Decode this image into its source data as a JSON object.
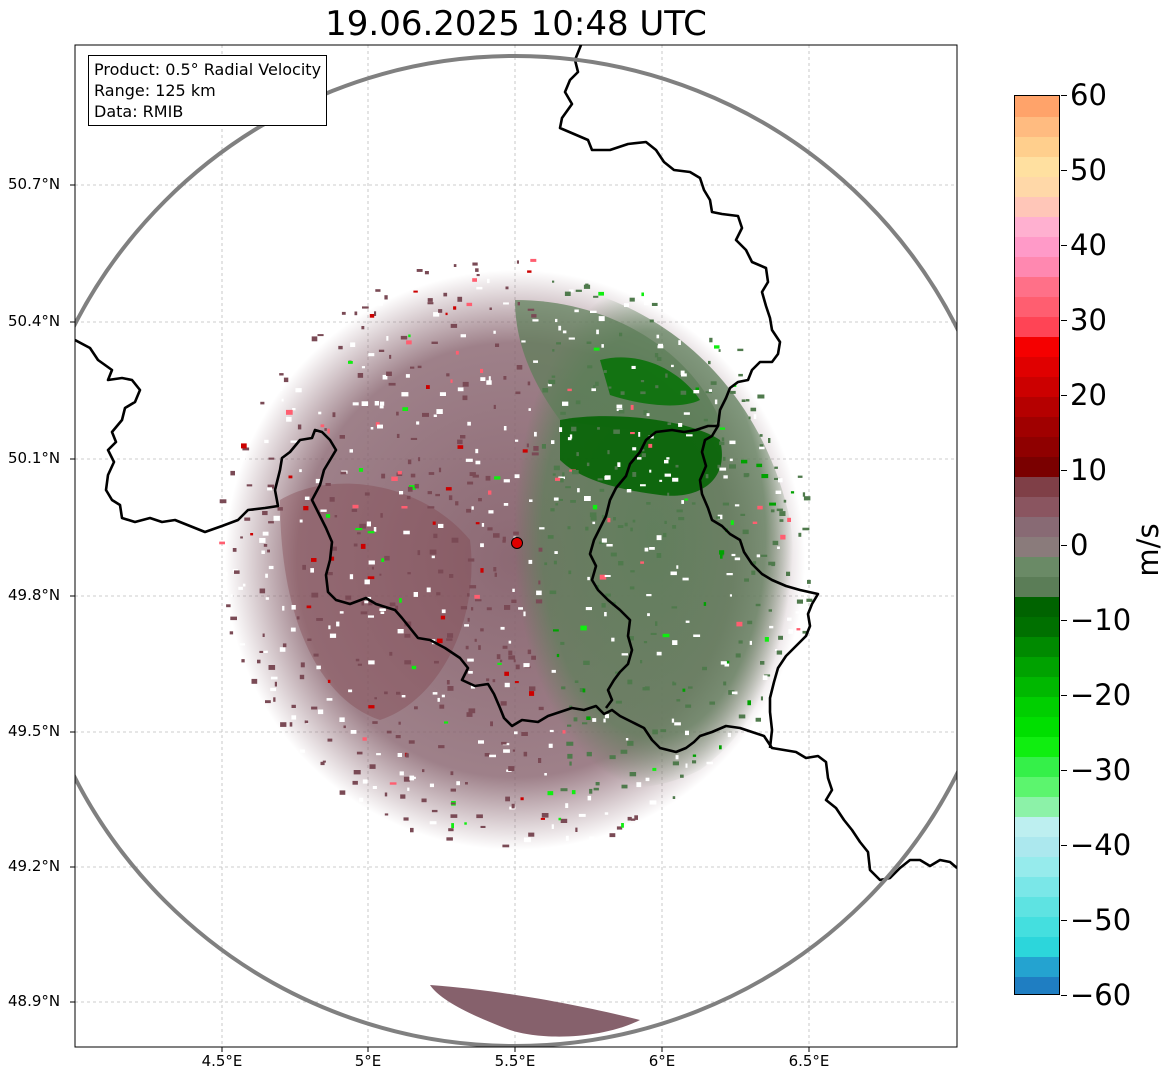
{
  "title": "19.06.2025 10:48 UTC",
  "info": {
    "product": "Product: 0.5° Radial Velocity",
    "range": "Range: 125 km",
    "data": "Data: RMIB"
  },
  "axes": {
    "lon_ticks": [
      "4.5°E",
      "5°E",
      "5.5°E",
      "6°E",
      "6.5°E"
    ],
    "lat_ticks": [
      "50.7°N",
      "50.4°N",
      "50.1°N",
      "49.8°N",
      "49.5°N",
      "49.2°N",
      "48.9°N"
    ],
    "lon_range": [
      4.0,
      7.0
    ],
    "lat_range": [
      48.8,
      51.0
    ]
  },
  "colorbar": {
    "unit": "m/s",
    "ticks": [
      "60",
      "50",
      "40",
      "30",
      "20",
      "10",
      "0",
      "−10",
      "−20",
      "−30",
      "−40",
      "−50",
      "−60"
    ],
    "range": [
      -60,
      60
    ],
    "colors": [
      "#1f7ec2",
      "#24a3d0",
      "#2cd6db",
      "#44dfdf",
      "#5ee3e2",
      "#7ae7e8",
      "#96ebec",
      "#ace8ee",
      "#bdeff0",
      "#8cf2a8",
      "#5cf56e",
      "#35f049",
      "#10ee10",
      "#00df00",
      "#00cf00",
      "#00b800",
      "#00a200",
      "#008a00",
      "#007000",
      "#006300",
      "#5b7d57",
      "#6a8a66",
      "#8a7b7b",
      "#886a74",
      "#8a5560",
      "#7f3f47",
      "#7a0000",
      "#8f0000",
      "#a00000",
      "#b50000",
      "#cc0000",
      "#e00000",
      "#f50000",
      "#ff4455",
      "#ff5e70",
      "#ff7088",
      "#ff88b0",
      "#ff9ac8",
      "#ffb0d0",
      "#ffc6b8",
      "#ffd8a8",
      "#ffe0a0",
      "#ffcf8d",
      "#ffbb80",
      "#ffa36a"
    ]
  },
  "radar": {
    "site_lon": 5.5,
    "site_lat": 49.915,
    "range_km": 125,
    "site_color": "#e00000"
  },
  "colors": {
    "ring": "#808080",
    "border": "#000000",
    "grid": "#c0c0c0"
  }
}
